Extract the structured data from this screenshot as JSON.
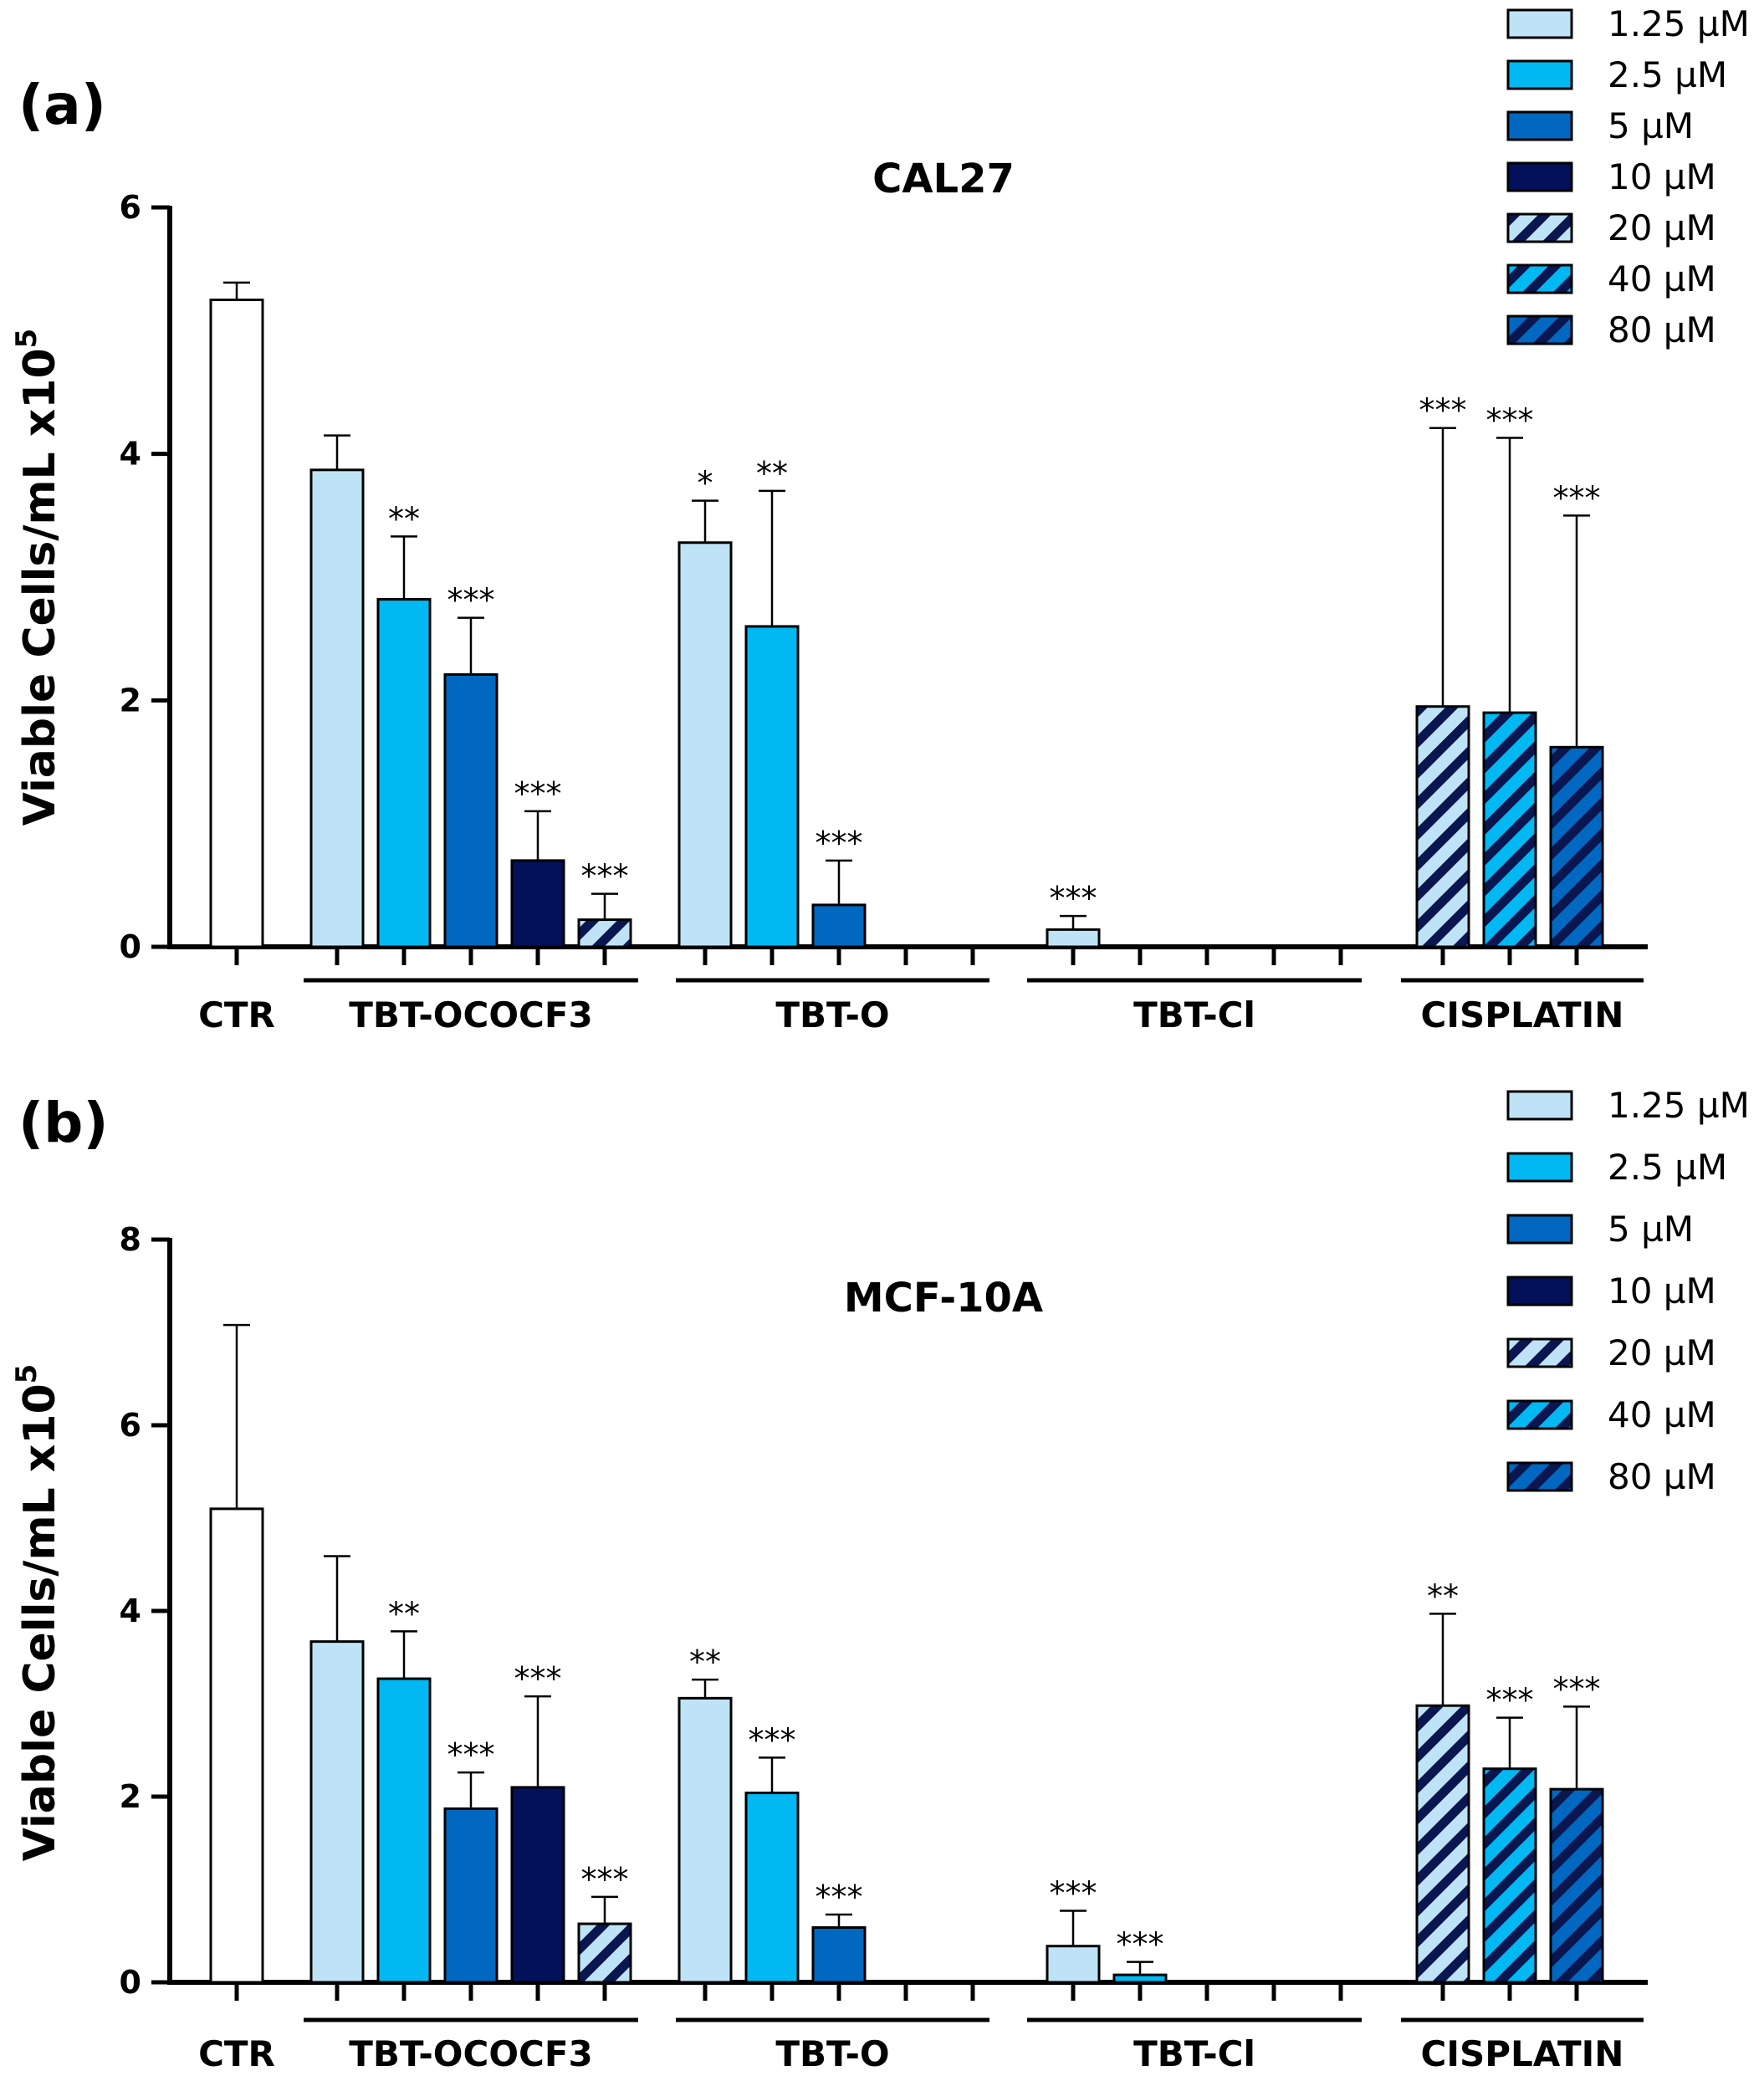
{
  "legend": [
    {
      "label": "1.25 µM",
      "color": "#bfe3f6",
      "hatched": false
    },
    {
      "label": "2.5 µM",
      "color": "#00b8f2",
      "hatched": false
    },
    {
      "label": "5 µM",
      "color": "#0068c0",
      "hatched": false
    },
    {
      "label": "10 µM",
      "color": "#03105a",
      "hatched": false
    },
    {
      "label": "20 µM",
      "color": "#bfe3f6",
      "hatched": true
    },
    {
      "label": "40 µM",
      "color": "#00b8f2",
      "hatched": true
    },
    {
      "label": "80 µM",
      "color": "#0068c0",
      "hatched": true
    }
  ],
  "hatch_color": "#0a1650",
  "chart_data": [
    {
      "type": "bar",
      "panel_label": "(a)",
      "title": "CAL27",
      "ylabel": "Viable Cells/mL x10",
      "ylabel_sup": "5",
      "ylim": [
        0,
        6
      ],
      "yticks": [
        0,
        2,
        4,
        6
      ],
      "groups": [
        "CTR",
        "TBT-OCOCF3",
        "TBT-O",
        "TBT-Cl",
        "CISPLATIN"
      ],
      "bars": [
        {
          "group": "CTR",
          "dose": "CTR",
          "value": 5.25,
          "error": 0.14,
          "sig": ""
        },
        {
          "group": "TBT-OCOCF3",
          "dose": "1.25 µM",
          "value": 3.87,
          "error": 0.28,
          "sig": ""
        },
        {
          "group": "TBT-OCOCF3",
          "dose": "2.5 µM",
          "value": 2.82,
          "error": 0.51,
          "sig": "**"
        },
        {
          "group": "TBT-OCOCF3",
          "dose": "5 µM",
          "value": 2.21,
          "error": 0.46,
          "sig": "***"
        },
        {
          "group": "TBT-OCOCF3",
          "dose": "10 µM",
          "value": 0.7,
          "error": 0.4,
          "sig": "***"
        },
        {
          "group": "TBT-OCOCF3",
          "dose": "20 µM",
          "value": 0.22,
          "error": 0.21,
          "sig": "***"
        },
        {
          "group": "TBT-O",
          "dose": "1.25 µM",
          "value": 3.28,
          "error": 0.34,
          "sig": "*"
        },
        {
          "group": "TBT-O",
          "dose": "2.5 µM",
          "value": 2.6,
          "error": 1.1,
          "sig": "**"
        },
        {
          "group": "TBT-O",
          "dose": "5 µM",
          "value": 0.34,
          "error": 0.36,
          "sig": "***"
        },
        {
          "group": "TBT-O",
          "dose": "10 µM",
          "value": 0,
          "error": 0,
          "sig": ""
        },
        {
          "group": "TBT-O",
          "dose": "20 µM",
          "value": 0,
          "error": 0,
          "sig": ""
        },
        {
          "group": "TBT-Cl",
          "dose": "1.25 µM",
          "value": 0.14,
          "error": 0.11,
          "sig": "***"
        },
        {
          "group": "TBT-Cl",
          "dose": "2.5 µM",
          "value": 0,
          "error": 0,
          "sig": ""
        },
        {
          "group": "TBT-Cl",
          "dose": "5 µM",
          "value": 0,
          "error": 0,
          "sig": ""
        },
        {
          "group": "TBT-Cl",
          "dose": "10 µM",
          "value": 0,
          "error": 0,
          "sig": ""
        },
        {
          "group": "TBT-Cl",
          "dose": "20 µM",
          "value": 0,
          "error": 0,
          "sig": ""
        },
        {
          "group": "CISPLATIN",
          "dose": "20 µM",
          "value": 1.95,
          "error": 2.26,
          "sig": "***"
        },
        {
          "group": "CISPLATIN",
          "dose": "40 µM",
          "value": 1.9,
          "error": 2.23,
          "sig": "***"
        },
        {
          "group": "CISPLATIN",
          "dose": "80 µM",
          "value": 1.62,
          "error": 1.88,
          "sig": "***"
        }
      ]
    },
    {
      "type": "bar",
      "panel_label": "(b)",
      "title": "MCF-10A",
      "ylabel": "Viable Cells/mL x10",
      "ylabel_sup": "5",
      "ylim": [
        0,
        8
      ],
      "yticks": [
        0,
        2,
        4,
        6,
        8
      ],
      "groups": [
        "CTR",
        "TBT-OCOCF3",
        "TBT-O",
        "TBT-Cl",
        "CISPLATIN"
      ],
      "bars": [
        {
          "group": "CTR",
          "dose": "CTR",
          "value": 5.1,
          "error": 1.98,
          "sig": ""
        },
        {
          "group": "TBT-OCOCF3",
          "dose": "1.25 µM",
          "value": 3.67,
          "error": 0.92,
          "sig": ""
        },
        {
          "group": "TBT-OCOCF3",
          "dose": "2.5 µM",
          "value": 3.27,
          "error": 0.51,
          "sig": "**"
        },
        {
          "group": "TBT-OCOCF3",
          "dose": "5 µM",
          "value": 1.87,
          "error": 0.39,
          "sig": "***"
        },
        {
          "group": "TBT-OCOCF3",
          "dose": "10 µM",
          "value": 2.1,
          "error": 0.98,
          "sig": "***"
        },
        {
          "group": "TBT-OCOCF3",
          "dose": "20 µM",
          "value": 0.63,
          "error": 0.29,
          "sig": "***"
        },
        {
          "group": "TBT-O",
          "dose": "1.25 µM",
          "value": 3.06,
          "error": 0.2,
          "sig": "**"
        },
        {
          "group": "TBT-O",
          "dose": "2.5 µM",
          "value": 2.04,
          "error": 0.38,
          "sig": "***"
        },
        {
          "group": "TBT-O",
          "dose": "5 µM",
          "value": 0.59,
          "error": 0.14,
          "sig": "***"
        },
        {
          "group": "TBT-O",
          "dose": "10 µM",
          "value": 0,
          "error": 0,
          "sig": ""
        },
        {
          "group": "TBT-O",
          "dose": "20 µM",
          "value": 0,
          "error": 0,
          "sig": ""
        },
        {
          "group": "TBT-Cl",
          "dose": "1.25 µM",
          "value": 0.39,
          "error": 0.38,
          "sig": "***"
        },
        {
          "group": "TBT-Cl",
          "dose": "2.5 µM",
          "value": 0.08,
          "error": 0.14,
          "sig": "***"
        },
        {
          "group": "TBT-Cl",
          "dose": "5 µM",
          "value": 0,
          "error": 0,
          "sig": ""
        },
        {
          "group": "TBT-Cl",
          "dose": "10 µM",
          "value": 0,
          "error": 0,
          "sig": ""
        },
        {
          "group": "TBT-Cl",
          "dose": "20 µM",
          "value": 0,
          "error": 0,
          "sig": ""
        },
        {
          "group": "CISPLATIN",
          "dose": "20 µM",
          "value": 2.98,
          "error": 0.99,
          "sig": "**"
        },
        {
          "group": "CISPLATIN",
          "dose": "40 µM",
          "value": 2.3,
          "error": 0.55,
          "sig": "***"
        },
        {
          "group": "CISPLATIN",
          "dose": "80 µM",
          "value": 2.08,
          "error": 0.89,
          "sig": "***"
        }
      ]
    }
  ]
}
